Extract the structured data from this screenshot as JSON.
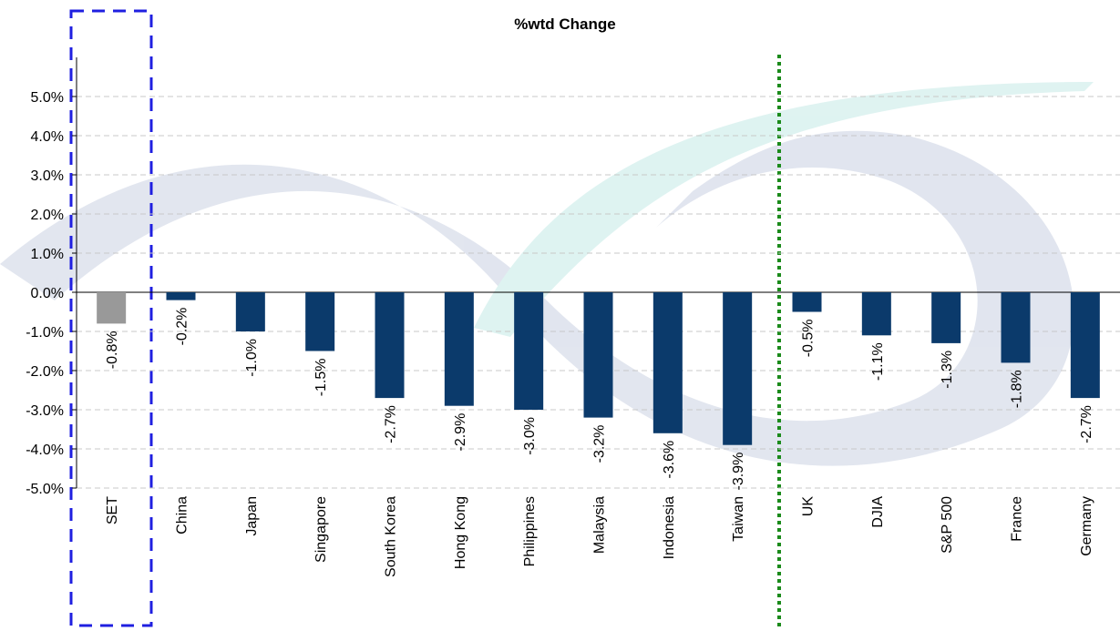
{
  "chart_data": {
    "type": "bar",
    "title": "%wtd Change",
    "categories": [
      "SET",
      "China",
      "Japan",
      "Singapore",
      "South Korea",
      "Hong Kong",
      "Philippines",
      "Malaysia",
      "Indonesia",
      "Taiwan",
      "UK",
      "DJIA",
      "S&P 500",
      "France",
      "Germany"
    ],
    "values": [
      -0.8,
      -0.2,
      -1.0,
      -1.5,
      -2.7,
      -2.9,
      -3.0,
      -3.2,
      -3.6,
      -3.9,
      -0.5,
      -1.1,
      -1.3,
      -1.8,
      -2.7
    ],
    "value_labels": [
      "-0.8%",
      "-0.2%",
      "-1.0%",
      "-1.5%",
      "-2.7%",
      "-2.9%",
      "-3.0%",
      "-3.2%",
      "-3.6%",
      "-3.9%",
      "-0.5%",
      "-1.1%",
      "-1.3%",
      "-1.8%",
      "-2.7%"
    ],
    "colors": [
      "#999999",
      "#0b3a6b",
      "#0b3a6b",
      "#0b3a6b",
      "#0b3a6b",
      "#0b3a6b",
      "#0b3a6b",
      "#0b3a6b",
      "#0b3a6b",
      "#0b3a6b",
      "#0b3a6b",
      "#0b3a6b",
      "#0b3a6b",
      "#0b3a6b",
      "#0b3a6b"
    ],
    "ylim": [
      -5,
      6
    ],
    "yticks": [
      {
        "value": -5,
        "label": "-5.0%"
      },
      {
        "value": -4,
        "label": "-4.0%"
      },
      {
        "value": -3,
        "label": "-3.0%"
      },
      {
        "value": -2,
        "label": "-2.0%"
      },
      {
        "value": -1,
        "label": "-1.0%"
      },
      {
        "value": 0,
        "label": "0.0%"
      },
      {
        "value": 1,
        "label": "1.0%"
      },
      {
        "value": 2,
        "label": "2.0%"
      },
      {
        "value": 3,
        "label": "3.0%"
      },
      {
        "value": 4,
        "label": "4.0%"
      },
      {
        "value": 5,
        "label": "5.0%"
      }
    ],
    "grid": true
  }
}
